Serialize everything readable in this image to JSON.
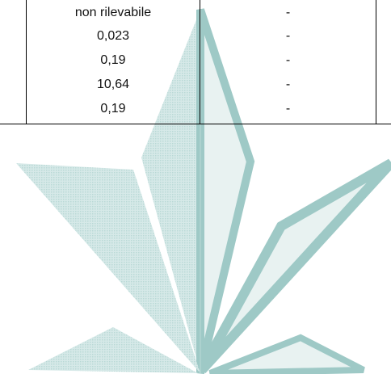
{
  "table": {
    "rows": [
      {
        "value": "non rilevabile",
        "note": "-"
      },
      {
        "value": "0,023",
        "note": "-"
      },
      {
        "value": "0,19",
        "note": "-"
      },
      {
        "value": "10,64",
        "note": "-"
      },
      {
        "value": "0,19",
        "note": "-"
      }
    ]
  },
  "colors": {
    "watermark": "#cfe4e3",
    "watermark_stroke": "#9ec9c6",
    "rule": "#000000",
    "text": "#111111"
  },
  "icons": {
    "watermark": "leaf-logo-watermark"
  }
}
